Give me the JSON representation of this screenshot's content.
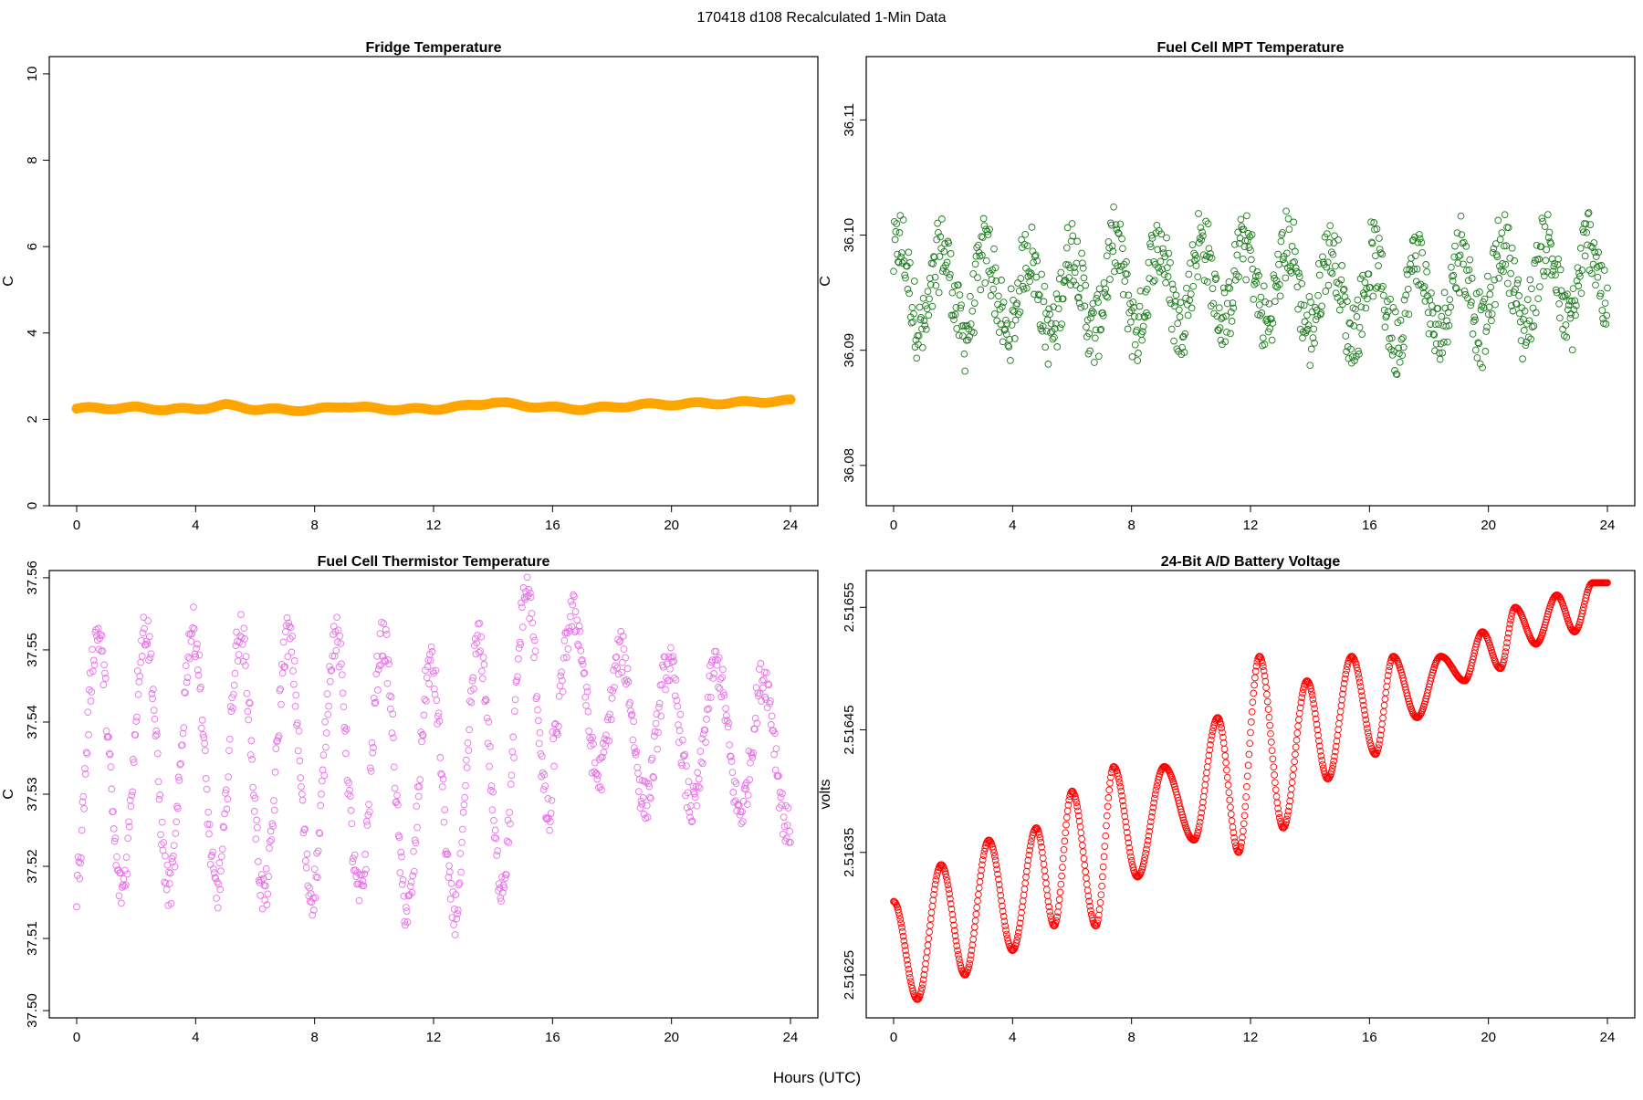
{
  "page_title": "170418   d108   Recalculated 1-Min Data",
  "shared_xlabel": "Hours (UTC)",
  "chart_data": [
    {
      "id": "fridge",
      "type": "scatter",
      "title": "Fridge Temperature",
      "xlabel": "",
      "ylabel": "C",
      "xlim": [
        0,
        24
      ],
      "ylim": [
        0,
        10.4
      ],
      "xticks": [
        0,
        4,
        8,
        12,
        16,
        20,
        24
      ],
      "yticks": [
        0,
        2,
        4,
        6,
        8,
        10
      ],
      "ytick_labels": [
        "0",
        "2",
        "4",
        "6",
        "8",
        "10"
      ],
      "color": "#FFA500",
      "marker": "filled",
      "sample_step_hours": 0.1,
      "anchor_x": [
        0,
        1,
        2,
        3,
        4,
        5,
        6,
        7,
        8,
        9,
        10,
        11,
        12,
        13,
        14,
        15,
        16,
        17,
        18,
        19,
        20,
        21,
        22,
        23,
        24
      ],
      "anchor_y": [
        2.25,
        2.26,
        2.27,
        2.23,
        2.24,
        2.33,
        2.24,
        2.22,
        2.22,
        2.31,
        2.25,
        2.23,
        2.24,
        2.3,
        2.4,
        2.32,
        2.27,
        2.24,
        2.28,
        2.34,
        2.35,
        2.37,
        2.38,
        2.41,
        2.43
      ]
    },
    {
      "id": "mpt",
      "type": "scatter",
      "title": "Fuel Cell MPT Temperature",
      "xlabel": "",
      "ylabel": "C",
      "xlim": [
        0,
        24
      ],
      "ylim": [
        36.0765,
        36.1155
      ],
      "xticks": [
        0,
        4,
        8,
        12,
        16,
        20,
        24
      ],
      "yticks": [
        36.08,
        36.09,
        36.1,
        36.11
      ],
      "ytick_labels": [
        "36.08",
        "36.09",
        "36.10",
        "36.11"
      ],
      "color": "#1E7B1E",
      "marker": "open",
      "sample_step_hours": 0.025,
      "anchor_x": [
        0,
        2,
        4,
        6,
        8,
        10,
        12,
        14,
        16,
        18,
        20,
        22,
        24
      ],
      "anchor_y": [
        36.0955,
        36.095,
        36.095,
        36.095,
        36.0955,
        36.096,
        36.096,
        36.0955,
        36.0945,
        36.0945,
        36.0955,
        36.096,
        36.096
      ],
      "noise_amplitude": 0.0045
    },
    {
      "id": "thermistor",
      "type": "scatter",
      "title": "Fuel Cell Thermistor Temperature",
      "xlabel": "",
      "ylabel": "C",
      "xlim": [
        0,
        24
      ],
      "ylim": [
        37.499,
        37.561
      ],
      "xticks": [
        0,
        4,
        8,
        12,
        16,
        20,
        24
      ],
      "yticks": [
        37.5,
        37.51,
        37.52,
        37.53,
        37.54,
        37.55,
        37.56
      ],
      "ytick_labels": [
        "37.50",
        "37.51",
        "37.52",
        "37.53",
        "37.54",
        "37.55",
        "37.56"
      ],
      "color": "#E872E8",
      "marker": "open",
      "sample_step_hours": 0.025,
      "anchor_x": [
        0,
        2,
        4,
        6,
        8,
        10,
        12,
        14,
        16,
        17,
        18,
        20,
        22,
        24
      ],
      "anchor_y": [
        37.534,
        37.535,
        37.535,
        37.534,
        37.534,
        37.534,
        37.53,
        37.534,
        37.545,
        37.545,
        37.54,
        37.538,
        37.538,
        37.535
      ],
      "osc_amplitude": 0.018,
      "osc_period_hours": 1.6,
      "osc_decay_start_hours": 16
    },
    {
      "id": "battery",
      "type": "scatter",
      "title": "24-Bit A/D Battery Voltage",
      "xlabel": "",
      "ylabel": "volts",
      "xlim": [
        0,
        24
      ],
      "ylim": [
        2.516215,
        2.51658
      ],
      "xticks": [
        0,
        4,
        8,
        12,
        16,
        20,
        24
      ],
      "yticks": [
        2.51625,
        2.51635,
        2.51645,
        2.51655
      ],
      "ytick_labels": [
        "2.51625",
        "2.51635",
        "2.51645",
        "2.51655"
      ],
      "color": "#FF0000",
      "marker": "open",
      "sample_step_hours": 0.025,
      "anchor_x": [
        0,
        0.8,
        1.6,
        2.4,
        3.2,
        4.0,
        4.8,
        5.4,
        6.0,
        6.8,
        7.4,
        8.2,
        9.1,
        10.1,
        10.9,
        11.6,
        12.3,
        13.1,
        13.9,
        14.6,
        15.4,
        16.2,
        16.8,
        17.6,
        18.4,
        19.2,
        19.8,
        20.4,
        20.9,
        21.6,
        22.3,
        22.9,
        23.5,
        23.9
      ],
      "anchor_y": [
        2.51631,
        2.51623,
        2.51634,
        2.51625,
        2.51636,
        2.51627,
        2.51637,
        2.51629,
        2.5164,
        2.51629,
        2.51642,
        2.51633,
        2.51642,
        2.51636,
        2.51646,
        2.51635,
        2.51651,
        2.51637,
        2.51649,
        2.51641,
        2.51651,
        2.51643,
        2.51651,
        2.51646,
        2.51651,
        2.51649,
        2.51653,
        2.5165,
        2.51655,
        2.51652,
        2.51656,
        2.51653,
        2.51657,
        2.51657
      ]
    }
  ]
}
